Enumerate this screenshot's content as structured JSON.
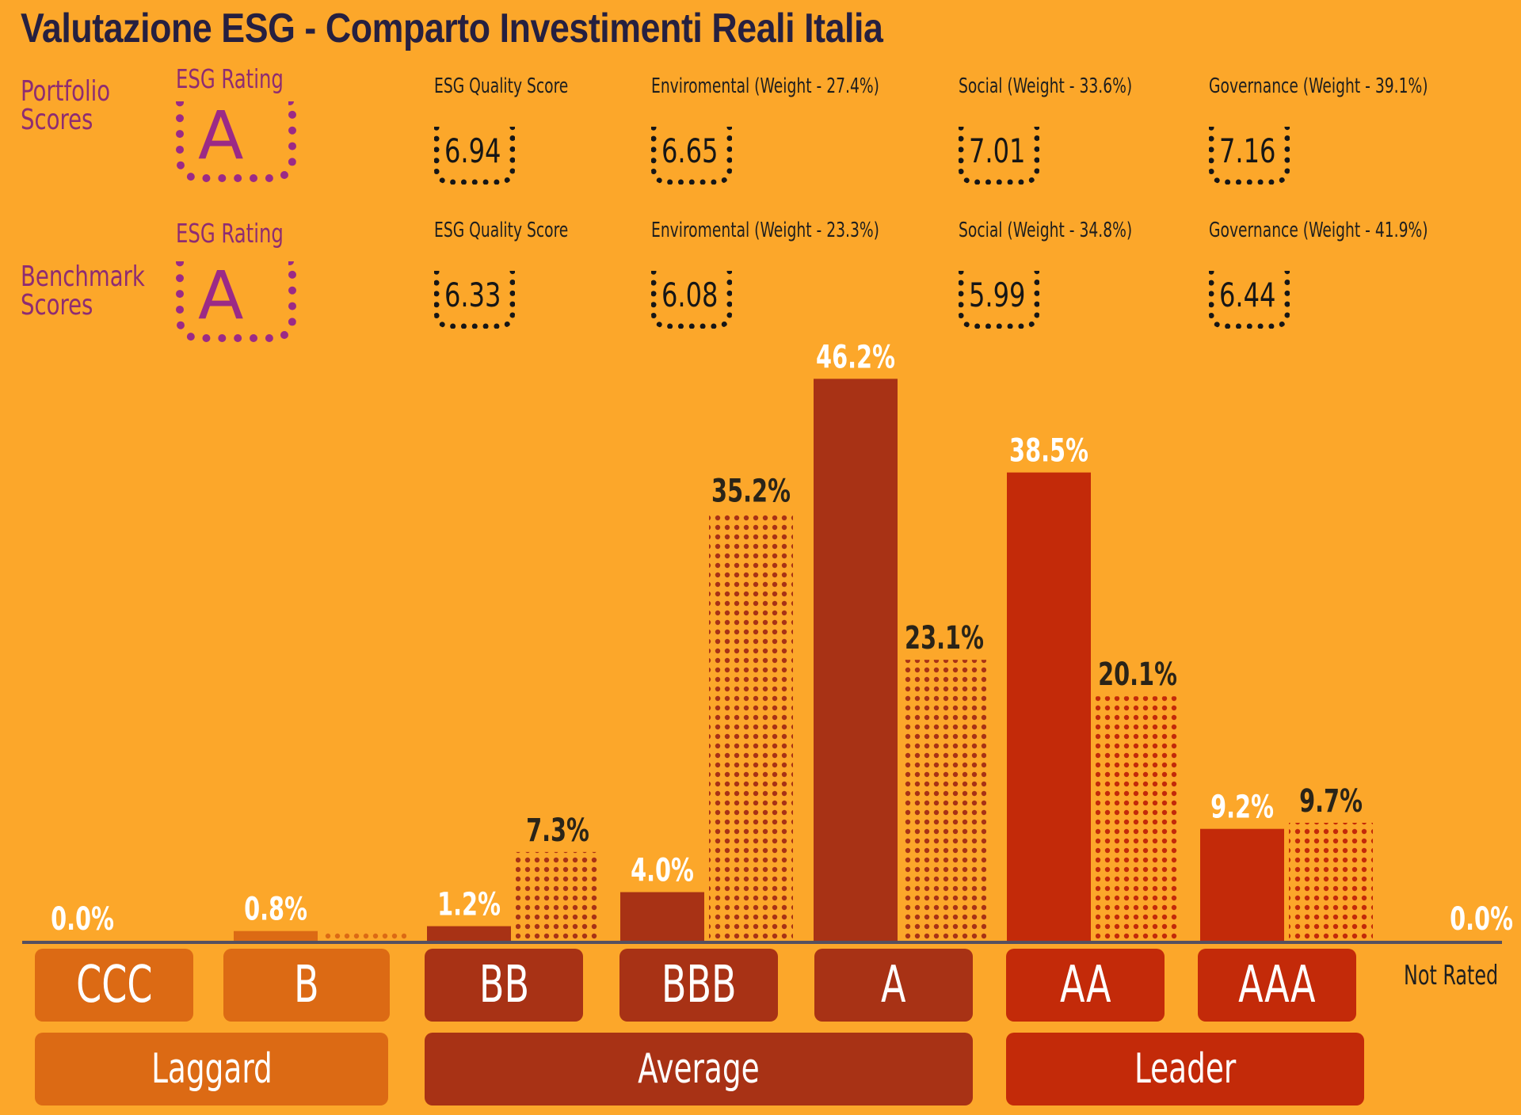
{
  "title": "Valutazione ESG - Comparto Investimenti Reali Italia",
  "portfolio": {
    "label_line1": "Portfolio",
    "label_line2": "Scores",
    "rating_label": "ESG Rating",
    "rating": "A",
    "metrics": [
      {
        "label": "ESG Quality Score",
        "value": "6.94"
      },
      {
        "label": "Enviromental (Weight - 27.4%)",
        "value": "6.65"
      },
      {
        "label": "Social (Weight - 33.6%)",
        "value": "7.01"
      },
      {
        "label": "Governance (Weight - 39.1%)",
        "value": "7.16"
      }
    ]
  },
  "benchmark": {
    "label_line1": "Benchmark",
    "label_line2": "Scores",
    "rating_label": "ESG Rating",
    "rating": "A",
    "metrics": [
      {
        "label": "ESG Quality Score",
        "value": "6.33"
      },
      {
        "label": "Enviromental (Weight - 23.3%)",
        "value": "6.08"
      },
      {
        "label": "Social (Weight - 34.8%)",
        "value": "5.99"
      },
      {
        "label": "Governance (Weight - 41.9%)",
        "value": "6.44"
      }
    ]
  },
  "chart_data": {
    "type": "bar",
    "categories": [
      "CCC",
      "B",
      "BB",
      "BBB",
      "A",
      "AA",
      "AAA",
      "Not Rated"
    ],
    "series": [
      {
        "values": [
          0.0,
          0.8,
          1.2,
          4.0,
          46.2,
          38.5,
          9.2,
          0.0
        ],
        "labels": [
          "0.0%",
          "0.8%",
          "1.2%",
          "4.0%",
          "46.2%",
          "38.5%",
          "9.2%",
          "0.0%"
        ]
      },
      {
        "values": [
          null,
          0.8,
          7.3,
          35.2,
          23.1,
          20.1,
          9.7,
          null
        ],
        "labels": [
          "",
          "",
          "7.3%",
          "35.2%",
          "23.1%",
          "20.1%",
          "9.7%",
          ""
        ]
      }
    ],
    "groups": [
      {
        "label": "Laggard",
        "categories": [
          "CCC",
          "B"
        ],
        "color": "#dc6a14"
      },
      {
        "label": "Average",
        "categories": [
          "BB",
          "BBB",
          "A"
        ],
        "color": "#a83215"
      },
      {
        "label": "Leader",
        "categories": [
          "AA",
          "AAA"
        ],
        "color": "#c32a09"
      }
    ],
    "ylim": [
      0,
      50
    ]
  },
  "colors": {
    "background": "#fca72a",
    "laggard": "#dc6a14",
    "average": "#a83215",
    "leader": "#c32a09",
    "accent": "#9b2a86"
  }
}
